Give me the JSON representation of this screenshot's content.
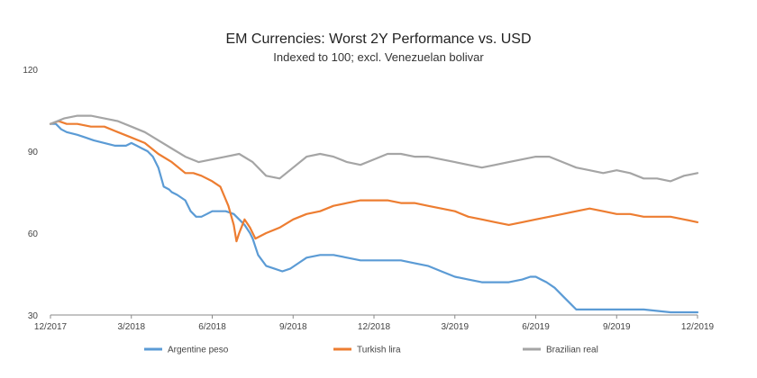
{
  "chart_data": {
    "type": "line",
    "title": "EM Currencies: Worst 2Y Performance vs. USD",
    "subtitle": "Indexed to 100; excl. Venezuelan bolivar",
    "xlabel": "",
    "ylabel": "",
    "x_tick_labels": [
      "12/2017",
      "3/2018",
      "6/2018",
      "9/2018",
      "12/2018",
      "3/2019",
      "6/2019",
      "9/2019",
      "12/2019"
    ],
    "x_range": [
      "12/2017",
      "12/2019"
    ],
    "y_ticks": [
      30,
      60,
      90,
      120
    ],
    "ylim": [
      30,
      120
    ],
    "grid": false,
    "legend_position": "bottom",
    "series": [
      {
        "name": "Argentine peso",
        "color": "#5b9bd5",
        "x": [
          0,
          0.2,
          0.4,
          0.6,
          1,
          1.3,
          1.6,
          2,
          2.4,
          2.8,
          3,
          3.2,
          3.4,
          3.6,
          3.8,
          4,
          4.2,
          4.4,
          4.5,
          4.7,
          5,
          5.2,
          5.4,
          5.6,
          5.8,
          6,
          6.3,
          6.5,
          6.8,
          7,
          7.2,
          7.4,
          7.5,
          7.7,
          8,
          8.3,
          8.6,
          8.9,
          9.2,
          9.5,
          10,
          10.5,
          11,
          11.5,
          12,
          12.5,
          13,
          13.5,
          14,
          14.5,
          15,
          15.5,
          16,
          16.5,
          17,
          17.5,
          17.8,
          18,
          18.2,
          18.4,
          18.7,
          19,
          19.5,
          20,
          21,
          22,
          23,
          24
        ],
        "values": [
          100,
          100,
          98,
          97,
          96,
          95,
          94,
          93,
          92,
          92,
          93,
          92,
          91,
          90,
          88,
          84,
          77,
          76,
          75,
          74,
          72,
          68,
          66,
          66,
          67,
          68,
          68,
          68,
          67,
          65,
          63,
          60,
          58,
          52,
          48,
          47,
          46,
          47,
          49,
          51,
          52,
          52,
          51,
          50,
          50,
          50,
          50,
          49,
          48,
          46,
          44,
          43,
          42,
          42,
          42,
          43,
          44,
          44,
          43,
          42,
          40,
          37,
          32,
          32,
          32,
          32,
          31,
          31
        ]
      },
      {
        "name": "Turkish lira",
        "color": "#ed7d31",
        "x": [
          0,
          0.3,
          0.6,
          1,
          1.5,
          2,
          2.5,
          3,
          3.5,
          4,
          4.5,
          5,
          5.3,
          5.6,
          6,
          6.3,
          6.6,
          6.8,
          6.9,
          7,
          7.2,
          7.4,
          7.6,
          8,
          8.5,
          9,
          9.5,
          10,
          10.5,
          11,
          11.5,
          12,
          12.5,
          13,
          13.5,
          14,
          14.5,
          15,
          15.5,
          16,
          16.5,
          17,
          17.5,
          18,
          18.5,
          19,
          19.5,
          20,
          20.5,
          21,
          21.5,
          22,
          22.5,
          23,
          23.5,
          24
        ],
        "values": [
          100,
          101,
          100,
          100,
          99,
          99,
          97,
          95,
          93,
          89,
          86,
          82,
          82,
          81,
          79,
          77,
          70,
          63,
          57,
          60,
          65,
          62,
          58,
          60,
          62,
          65,
          67,
          68,
          70,
          71,
          72,
          72,
          72,
          71,
          71,
          70,
          69,
          68,
          66,
          65,
          64,
          63,
          64,
          65,
          66,
          67,
          68,
          69,
          68,
          67,
          67,
          66,
          66,
          66,
          65,
          64
        ]
      },
      {
        "name": "Brazilian real",
        "color": "#a5a5a5",
        "x": [
          0,
          0.5,
          1,
          1.5,
          2,
          2.5,
          3,
          3.5,
          4,
          4.5,
          5,
          5.5,
          6,
          6.5,
          7,
          7.5,
          8,
          8.5,
          9,
          9.5,
          10,
          10.5,
          11,
          11.5,
          12,
          12.5,
          13,
          13.5,
          14,
          14.5,
          15,
          15.5,
          16,
          16.5,
          17,
          17.5,
          18,
          18.5,
          19,
          19.5,
          20,
          20.5,
          21,
          21.5,
          22,
          22.5,
          23,
          23.5,
          24
        ],
        "values": [
          100,
          102,
          103,
          103,
          102,
          101,
          99,
          97,
          94,
          91,
          88,
          86,
          87,
          88,
          89,
          86,
          81,
          80,
          84,
          88,
          89,
          88,
          86,
          85,
          87,
          89,
          89,
          88,
          88,
          87,
          86,
          85,
          84,
          85,
          86,
          87,
          88,
          88,
          86,
          84,
          83,
          82,
          83,
          82,
          80,
          80,
          79,
          81,
          82
        ]
      }
    ]
  }
}
